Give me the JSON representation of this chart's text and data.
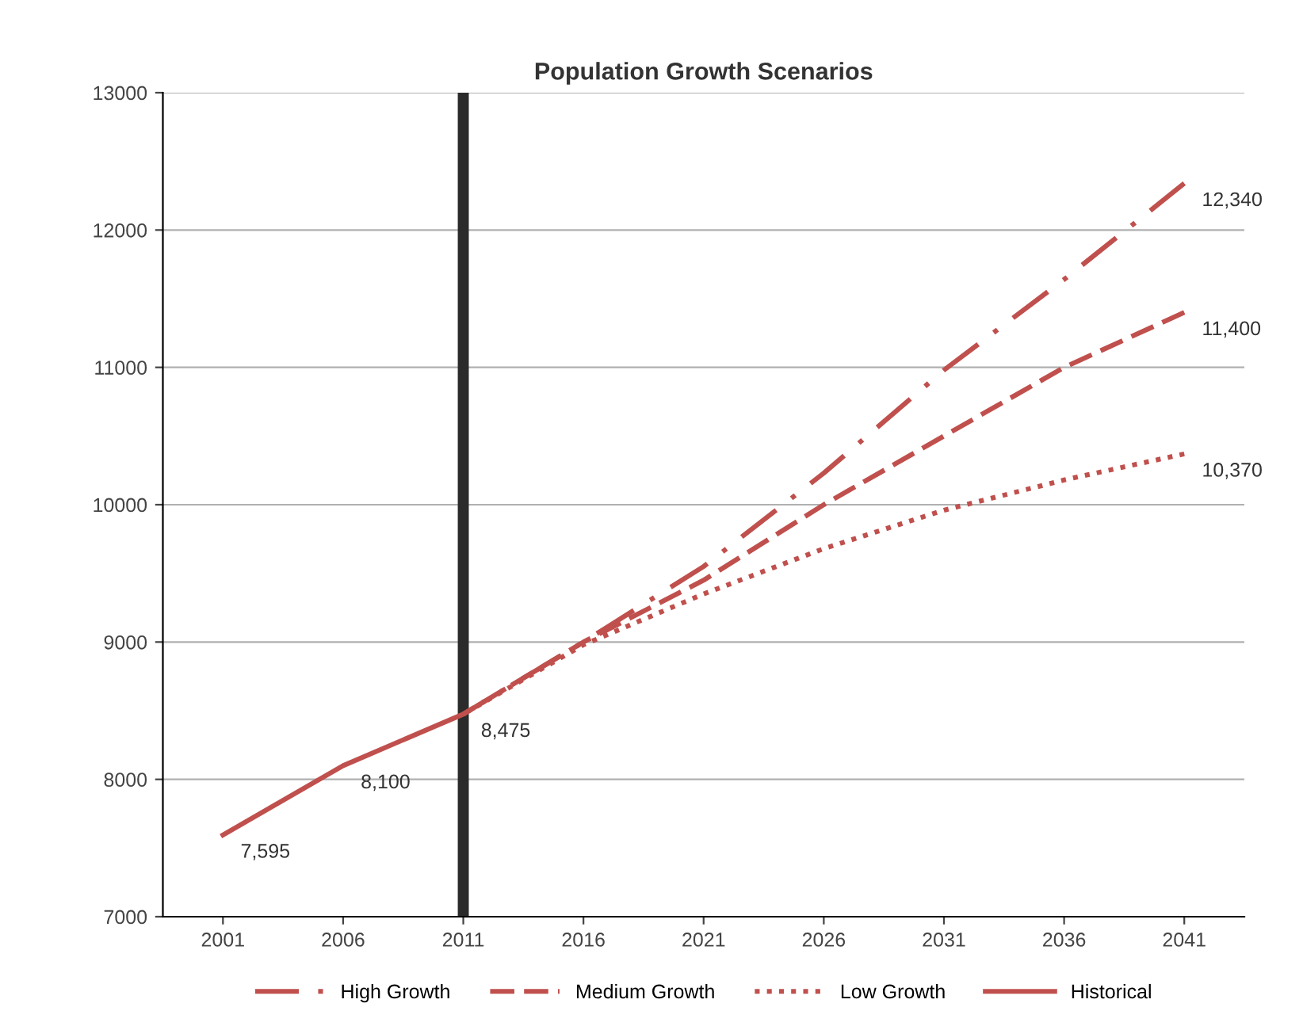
{
  "chart_data": {
    "type": "line",
    "title": "Population Growth Scenarios",
    "categories": [
      "2001",
      "2006",
      "2011",
      "2016",
      "2021",
      "2026",
      "2031",
      "2036",
      "2041"
    ],
    "series": [
      {
        "name": "High Growth",
        "color": "#c0504d",
        "line_style": "dashdot",
        "values": [
          null,
          null,
          8475,
          9000,
          9550,
          10230,
          10980,
          11640,
          12340
        ],
        "value_labels": [
          null,
          null,
          null,
          null,
          null,
          null,
          null,
          null,
          "12,340"
        ]
      },
      {
        "name": "Medium Growth",
        "color": "#c0504d",
        "line_style": "dashed",
        "values": [
          null,
          null,
          8475,
          9000,
          9450,
          10000,
          10500,
          11000,
          11400
        ],
        "value_labels": [
          null,
          null,
          null,
          null,
          null,
          null,
          null,
          null,
          "11,400"
        ]
      },
      {
        "name": "Low Growth",
        "color": "#c0504d",
        "line_style": "dotted",
        "values": [
          null,
          null,
          8475,
          8980,
          9350,
          9680,
          9960,
          10180,
          10370
        ],
        "value_labels": [
          null,
          null,
          null,
          null,
          null,
          null,
          null,
          null,
          "10,370"
        ]
      },
      {
        "name": "Historical",
        "color": "#c0504d",
        "line_style": "solid",
        "values": [
          7595,
          8100,
          8475,
          null,
          null,
          null,
          null,
          null,
          null
        ],
        "value_labels": [
          "7,595",
          "8,100",
          "8,475",
          null,
          null,
          null,
          null,
          null,
          null
        ]
      }
    ],
    "ref_lines": [
      {
        "axis": "x",
        "value": "2011",
        "color": "#2b2b2b",
        "line_style": "solid"
      }
    ],
    "ylim": [
      7000,
      13000
    ],
    "yticks": [
      7000,
      8000,
      9000,
      10000,
      11000,
      12000,
      13000
    ],
    "grid": "y",
    "legend": "bottom",
    "marker": "none"
  }
}
